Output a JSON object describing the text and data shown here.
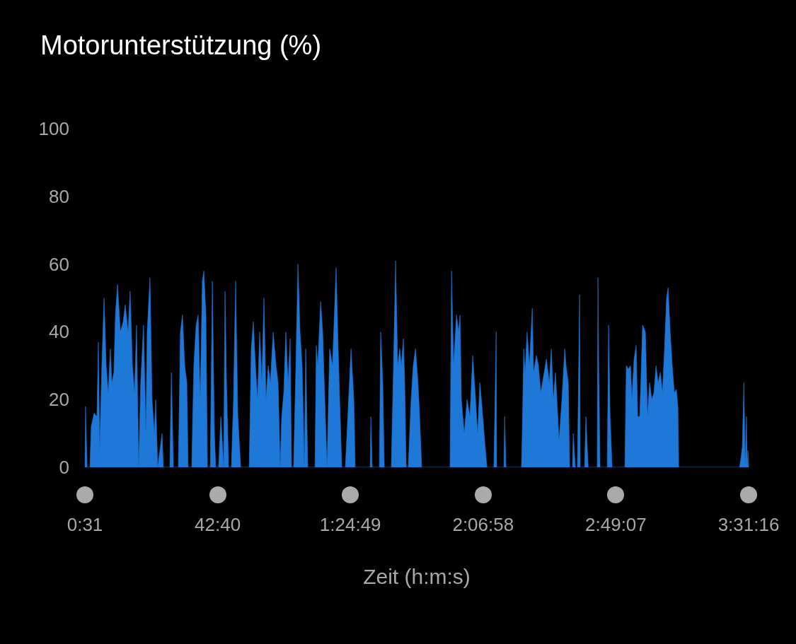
{
  "chart_data": {
    "type": "area",
    "title": "Motorunterstützung (%)",
    "xlabel": "Zeit (h:m:s)",
    "color": "#1e78d8",
    "marker": "none",
    "grid": false,
    "xlim": [
      31,
      12676
    ],
    "xticks": [
      {
        "value": 31,
        "label": "0:31"
      },
      {
        "value": 2560,
        "label": "42:40"
      },
      {
        "value": 5089,
        "label": "1:24:49"
      },
      {
        "value": 7618,
        "label": "2:06:58"
      },
      {
        "value": 10147,
        "label": "2:49:07"
      },
      {
        "value": 12676,
        "label": "3:31:16"
      }
    ],
    "ylim": [
      0,
      100
    ],
    "yticks": [
      0,
      20,
      40,
      60,
      80,
      100
    ],
    "x": [
      31,
      43,
      72,
      126,
      151,
      205,
      259,
      288,
      313,
      353,
      396,
      436,
      475,
      515,
      544,
      583,
      612,
      652,
      706,
      760,
      799,
      853,
      893,
      936,
      976,
      1015,
      1055,
      1094,
      1148,
      1192,
      1217,
      1271,
      1310,
      1354,
      1379,
      1418,
      1501,
      1526,
      1649,
      1678,
      1717,
      1811,
      1850,
      1890,
      1933,
      1973,
      1998,
      2066,
      2106,
      2149,
      2189,
      2228,
      2268,
      2297,
      2336,
      2365,
      2419,
      2459,
      2498,
      2524,
      2578,
      2621,
      2675,
      2700,
      2729,
      2768,
      2822,
      2862,
      2902,
      2945,
      2999,
      3161,
      3200,
      3240,
      3280,
      3319,
      3362,
      3402,
      3442,
      3481,
      3524,
      3564,
      3618,
      3672,
      3712,
      3751,
      3780,
      3820,
      3859,
      3902,
      3942,
      3967,
      4007,
      4050,
      4090,
      4129,
      4169,
      4212,
      4237,
      4277,
      4414,
      4439,
      4468,
      4522,
      4561,
      4601,
      4644,
      4694,
      4748,
      4817,
      4856,
      4885,
      4925,
      4993,
      5101,
      5155,
      5180,
      5465,
      5479,
      5504,
      5641,
      5666,
      5706,
      5735,
      5868,
      5911,
      5951,
      5990,
      6030,
      6059,
      6098,
      6124,
      6152,
      6192,
      6246,
      6286,
      6329,
      6368,
      6394,
      6448,
      6988,
      7016,
      7056,
      7110,
      7150,
      7178,
      7204,
      7258,
      7312,
      7366,
      7420,
      7474,
      7513,
      7556,
      7596,
      7636,
      7690,
      7823,
      7866,
      7877,
      8014,
      8028,
      8053,
      8348,
      8363,
      8392,
      8417,
      8456,
      8500,
      8554,
      8579,
      8633,
      8672,
      8716,
      8770,
      8824,
      8878,
      8917,
      8957,
      8996,
      9040,
      9065,
      9119,
      9173,
      9198,
      9241,
      9266,
      9320,
      9335,
      9374,
      9414,
      9457,
      9468,
      9551,
      9576,
      9619,
      9792,
      9806,
      9821,
      9846,
      9983,
      10008,
      10037,
      10076,
      10318,
      10346,
      10386,
      10426,
      10454,
      10494,
      10534,
      10562,
      10602,
      10656,
      10710,
      10750,
      10789,
      10832,
      10872,
      10912,
      10951,
      10994,
      11034,
      11074,
      11113,
      11142,
      11182,
      11221,
      11261,
      11300,
      11329,
      11344,
      12503,
      12532,
      12557,
      12586,
      12611,
      12636,
      12650,
      12664,
      12676
    ],
    "values": [
      0,
      18,
      0,
      0,
      12,
      16,
      15,
      37,
      5,
      30,
      50,
      30,
      22,
      35,
      25,
      28,
      45,
      54,
      40,
      43,
      48,
      40,
      52,
      30,
      22,
      42,
      0,
      25,
      42,
      10,
      40,
      56,
      20,
      10,
      20,
      0,
      10,
      0,
      0,
      28,
      0,
      0,
      40,
      45,
      30,
      25,
      0,
      0,
      30,
      42,
      45,
      20,
      55,
      58,
      45,
      0,
      0,
      55,
      10,
      0,
      0,
      15,
      0,
      52,
      25,
      0,
      0,
      20,
      55,
      15,
      0,
      0,
      35,
      43,
      30,
      20,
      40,
      25,
      50,
      20,
      30,
      25,
      40,
      30,
      25,
      0,
      15,
      22,
      40,
      25,
      38,
      0,
      0,
      30,
      60,
      40,
      30,
      0,
      35,
      0,
      0,
      36,
      30,
      49,
      40,
      20,
      0,
      35,
      30,
      59,
      35,
      20,
      0,
      0,
      35,
      20,
      0,
      0,
      15,
      0,
      0,
      40,
      25,
      0,
      0,
      30,
      61,
      30,
      35,
      30,
      38,
      25,
      0,
      0,
      20,
      30,
      35,
      27,
      20,
      0,
      0,
      58,
      30,
      45,
      40,
      45,
      20,
      10,
      20,
      15,
      33,
      20,
      10,
      25,
      18,
      10,
      0,
      0,
      40,
      0,
      0,
      15,
      0,
      0,
      10,
      35,
      28,
      40,
      30,
      47,
      28,
      33,
      30,
      22,
      27,
      32,
      25,
      35,
      20,
      28,
      15,
      8,
      20,
      35,
      30,
      25,
      0,
      0,
      10,
      0,
      0,
      51,
      0,
      0,
      15,
      0,
      0,
      56,
      28,
      0,
      0,
      42,
      15,
      0,
      0,
      30,
      29,
      30,
      20,
      32,
      36,
      15,
      15,
      42,
      40,
      15,
      25,
      20,
      22,
      30,
      25,
      28,
      22,
      35,
      50,
      53,
      40,
      30,
      22,
      23,
      18,
      0,
      0,
      3,
      6,
      25,
      0,
      15,
      0,
      5,
      0
    ]
  }
}
